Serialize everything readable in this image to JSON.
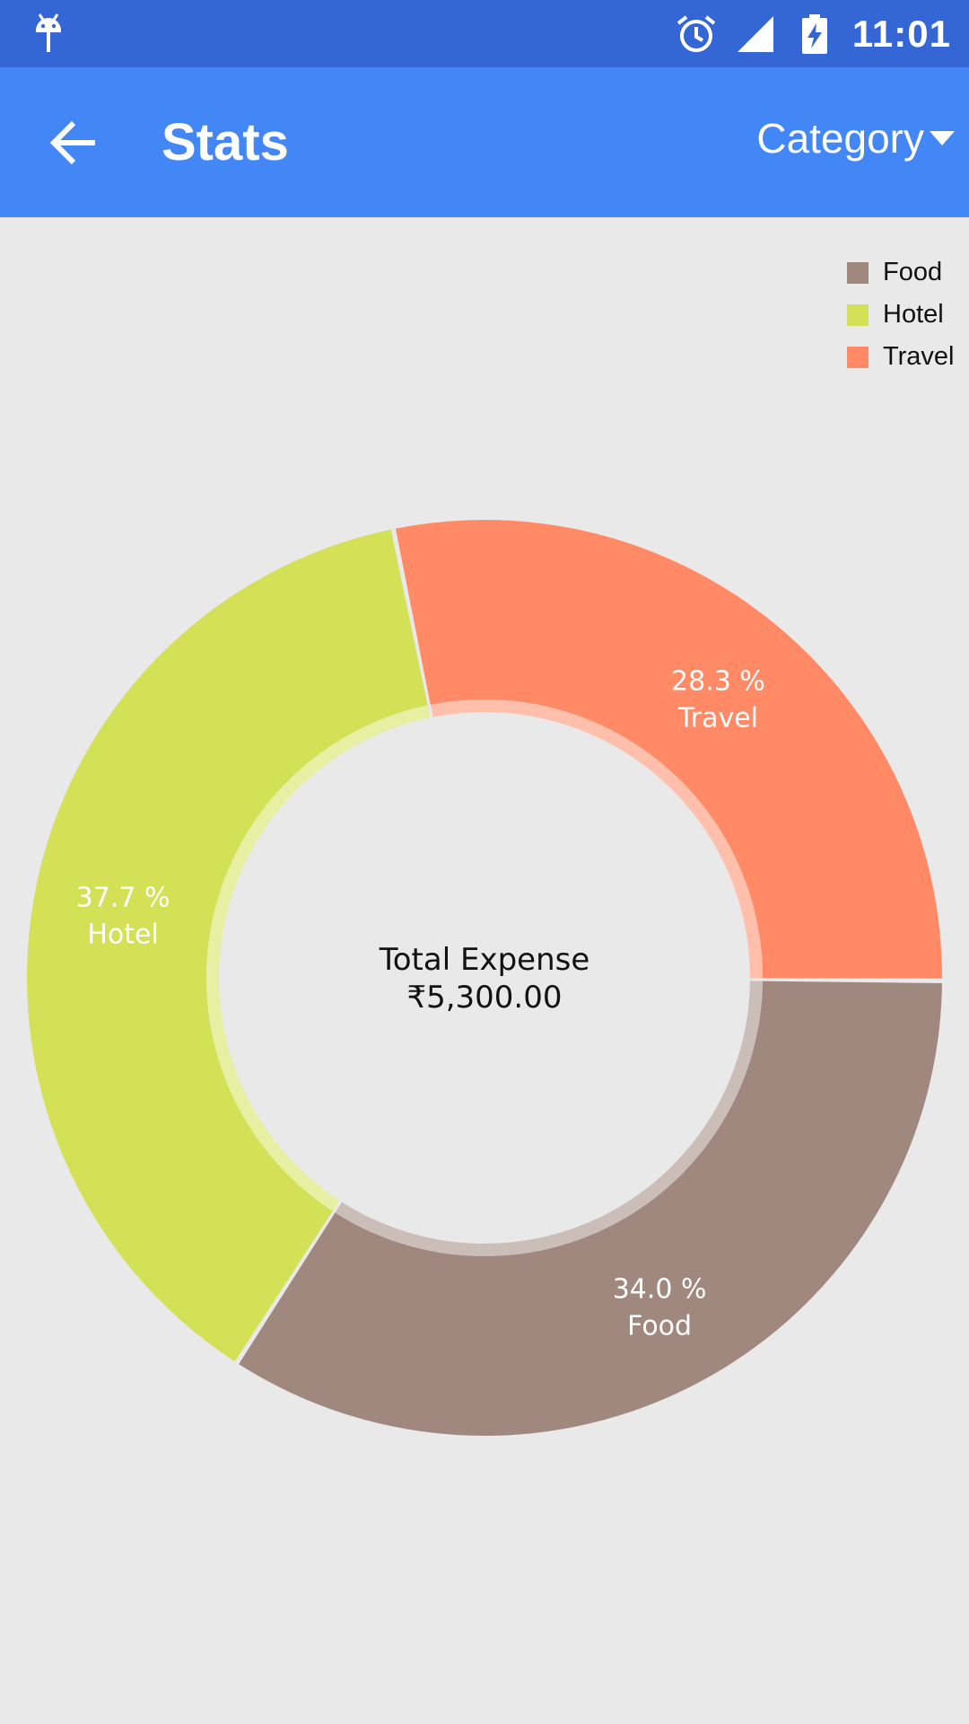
{
  "status_bar": {
    "time": "11:01",
    "icons": [
      "android-icon",
      "alarm-icon",
      "signal-icon",
      "battery-charging-icon"
    ]
  },
  "app_bar": {
    "title": "Stats",
    "back_icon": "arrow-left-icon",
    "dropdown_label": "Category",
    "dropdown_icon": "caret-down-icon",
    "color": "#4287f5"
  },
  "chart_data": {
    "type": "pie",
    "style": "donut",
    "center": {
      "line1": "Total Expense",
      "line2": "₹5,300.00"
    },
    "legend": [
      {
        "name": "Food",
        "color": "#a1887f"
      },
      {
        "name": "Hotel",
        "color": "#d4e157"
      },
      {
        "name": "Travel",
        "color": "#ff8a65"
      }
    ],
    "slices": [
      {
        "name": "Travel",
        "percent_label": "28.3 %",
        "value": 28.3,
        "color": "#ff8a65"
      },
      {
        "name": "Food",
        "percent_label": "34.0 %",
        "value": 34.0,
        "color": "#a1887f"
      },
      {
        "name": "Hotel",
        "percent_label": "37.7 %",
        "value": 37.7,
        "color": "#d4e157"
      }
    ]
  }
}
